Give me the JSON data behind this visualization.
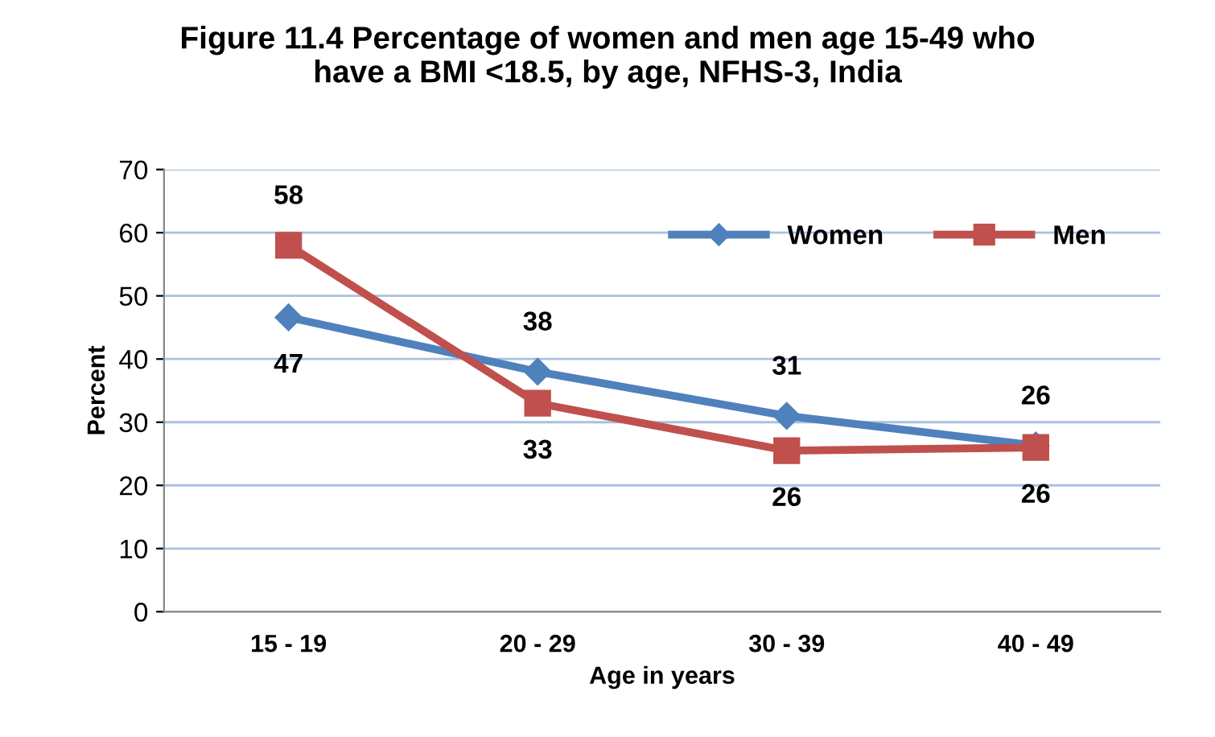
{
  "chart_data": {
    "type": "line",
    "title": "Figure 11.4 Percentage of women and men age 15-49 who\nhave a BMI <18.5, by age, NFHS-3, India",
    "xlabel": "Age in years",
    "ylabel": "Percent",
    "categories": [
      "15 - 19",
      "20 - 29",
      "30 - 39",
      "40 - 49"
    ],
    "series": [
      {
        "name": "Women",
        "color": "#4f81bd",
        "marker": "diamond",
        "values": [
          46.6,
          38,
          31,
          26.3
        ],
        "value_labels": [
          "47",
          "38",
          "31",
          "26"
        ]
      },
      {
        "name": "Men",
        "color": "#c0504d",
        "marker": "square",
        "values": [
          58,
          33,
          25.5,
          26
        ],
        "value_labels": [
          "58",
          "33",
          "26",
          "26"
        ]
      }
    ],
    "ylim": [
      0,
      70
    ],
    "yticks": [
      0,
      10,
      20,
      30,
      40,
      50,
      60,
      70
    ],
    "grid": "y",
    "legend": "top right",
    "line_style": "solid"
  }
}
